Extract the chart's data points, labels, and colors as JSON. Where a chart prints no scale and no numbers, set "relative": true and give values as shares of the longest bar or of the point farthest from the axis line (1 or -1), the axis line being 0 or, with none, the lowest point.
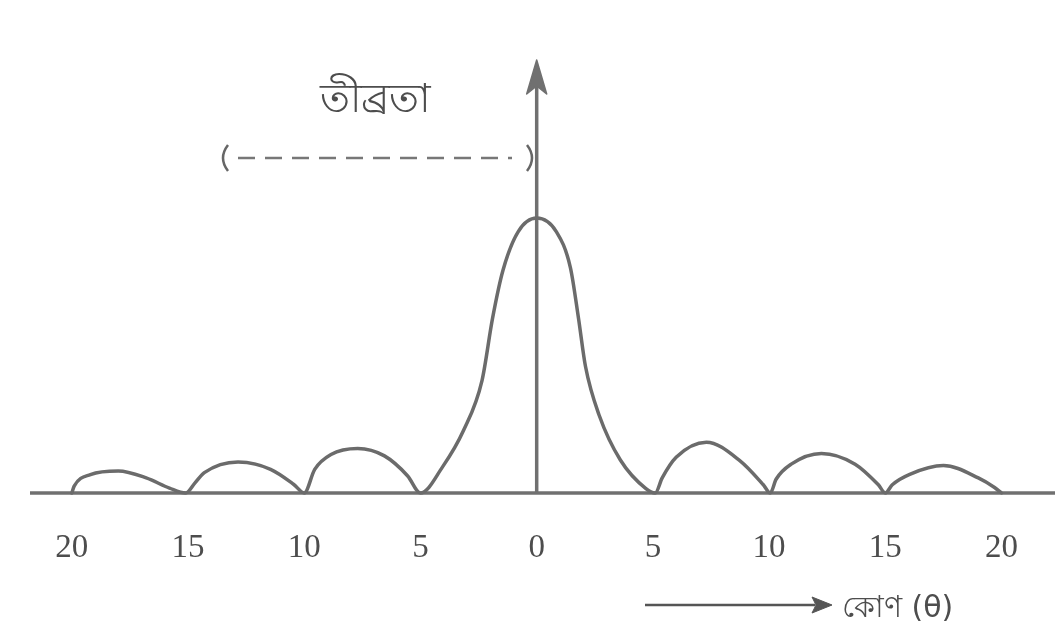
{
  "chart_data": {
    "type": "line",
    "relative": true,
    "ylabel": "তীব্রতা",
    "xlabel": "কোণ (θ)",
    "xlim": [
      -21.8,
      22.3
    ],
    "xticks": [
      {
        "value": -20,
        "label": "20"
      },
      {
        "value": -15,
        "label": "15"
      },
      {
        "value": -10,
        "label": "10"
      },
      {
        "value": -5,
        "label": "5"
      },
      0,
      5,
      10,
      15,
      20
    ],
    "x": [
      -20.0,
      -19.9,
      -19.2,
      -18.0,
      -16.8,
      -15.8,
      -15.1,
      -14.7,
      -14.3,
      -12.85,
      -11.45,
      -10.45,
      -10.0,
      -9.55,
      -8.85,
      -7.7,
      -6.55,
      -5.55,
      -5.0,
      -4.05,
      -3.15,
      -2.35,
      -1.9,
      -1.45,
      -0.8,
      0,
      0.85,
      1.45,
      1.8,
      2.1,
      2.7,
      3.6,
      4.7,
      5.1,
      5.4,
      6.0,
      7.3,
      8.75,
      9.75,
      10.05,
      10.3,
      10.95,
      12.25,
      13.7,
      14.7,
      15.0,
      15.3,
      16.05,
      17.5,
      19.0,
      19.7,
      20.0
    ],
    "series": [
      {
        "color": "#6b6b6b",
        "values": [
          0,
          0.025,
          0.067,
          0.08,
          0.055,
          0.018,
          0,
          0.037,
          0.074,
          0.113,
          0.086,
          0.031,
          0,
          0.086,
          0.14,
          0.162,
          0.135,
          0.062,
          0,
          0.095,
          0.227,
          0.41,
          0.635,
          0.81,
          0.95,
          1,
          0.95,
          0.82,
          0.635,
          0.46,
          0.28,
          0.12,
          0.016,
          0,
          0.055,
          0.13,
          0.185,
          0.117,
          0.03,
          0,
          0.05,
          0.105,
          0.144,
          0.105,
          0.03,
          0,
          0.03,
          0.068,
          0.1,
          0.055,
          0.02,
          0
        ]
      }
    ]
  }
}
